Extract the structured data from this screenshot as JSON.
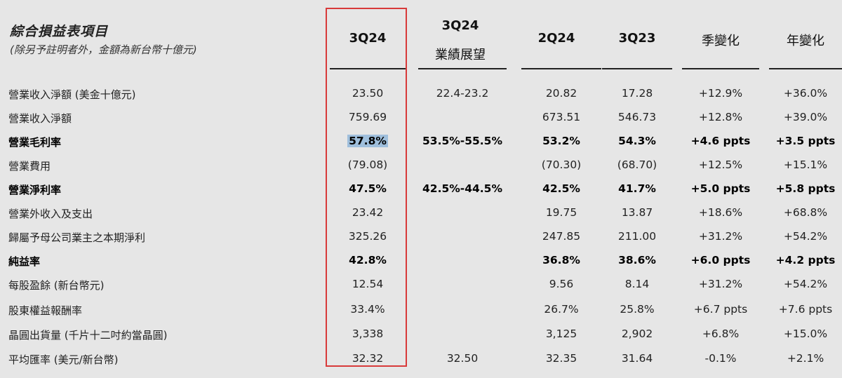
{
  "header": {
    "title": "綜合損益表項目",
    "subtitle": "(除另予註明者外，金額為新台幣十億元)",
    "columns": [
      {
        "line1": "3Q24",
        "line2": ""
      },
      {
        "line1": "3Q24",
        "line2": "業績展望"
      },
      {
        "line1": "2Q24",
        "line2": ""
      },
      {
        "line1": "3Q23",
        "line2": ""
      },
      {
        "line1": "季變化",
        "line2": ""
      },
      {
        "line1": "年變化",
        "line2": ""
      }
    ]
  },
  "rows": [
    {
      "label": "營業收入淨額 (美金十億元)",
      "bold": false,
      "cells": [
        "23.50",
        "22.4-23.2",
        "20.82",
        "17.28",
        "+12.9%",
        "+36.0%"
      ]
    },
    {
      "label": "營業收入淨額",
      "bold": false,
      "cells": [
        "759.69",
        "",
        "673.51",
        "546.73",
        "+12.8%",
        "+39.0%"
      ]
    },
    {
      "label": "營業毛利率",
      "bold": true,
      "cells": [
        "57.8%",
        "53.5%-55.5%",
        "53.2%",
        "54.3%",
        "+4.6 ppts",
        "+3.5 ppts"
      ]
    },
    {
      "label": "營業費用",
      "bold": false,
      "cells": [
        "(79.08)",
        "",
        "(70.30)",
        "(68.70)",
        "+12.5%",
        "+15.1%"
      ]
    },
    {
      "label": "營業淨利率",
      "bold": true,
      "cells": [
        "47.5%",
        "42.5%-44.5%",
        "42.5%",
        "41.7%",
        "+5.0 ppts",
        "+5.8 ppts"
      ]
    },
    {
      "label": "營業外收入及支出",
      "bold": false,
      "cells": [
        "23.42",
        "",
        "19.75",
        "13.87",
        "+18.6%",
        "+68.8%"
      ]
    },
    {
      "label": "歸屬予母公司業主之本期淨利",
      "bold": false,
      "cells": [
        "325.26",
        "",
        "247.85",
        "211.00",
        "+31.2%",
        "+54.2%"
      ]
    },
    {
      "label": "純益率",
      "bold": true,
      "cells": [
        "42.8%",
        "",
        "36.8%",
        "38.6%",
        "+6.0 ppts",
        "+4.2 ppts"
      ]
    },
    {
      "label": "每股盈餘 (新台幣元)",
      "bold": false,
      "cells": [
        "12.54",
        "",
        "9.56",
        "8.14",
        "+31.2%",
        "+54.2%"
      ]
    },
    {
      "label": "股東權益報酬率",
      "bold": false,
      "cells": [
        "33.4%",
        "",
        "26.7%",
        "25.8%",
        "+6.7 ppts",
        "+7.6 ppts"
      ]
    },
    {
      "label": "晶圓出貨量 (千片十二吋約當晶圓)",
      "bold": false,
      "cells": [
        "3,338",
        "",
        "3,125",
        "2,902",
        "+6.8%",
        "+15.0%"
      ]
    },
    {
      "label": "平均匯率 (美元/新台幣)",
      "bold": false,
      "cells": [
        "32.32",
        "32.50",
        "32.35",
        "31.64",
        "-0.1%",
        "+2.1%"
      ]
    }
  ],
  "colors": {
    "background": "#e6e6e6",
    "highlight_box": "#d83a3a",
    "selected_cell_bg": "#9fbfdc"
  }
}
